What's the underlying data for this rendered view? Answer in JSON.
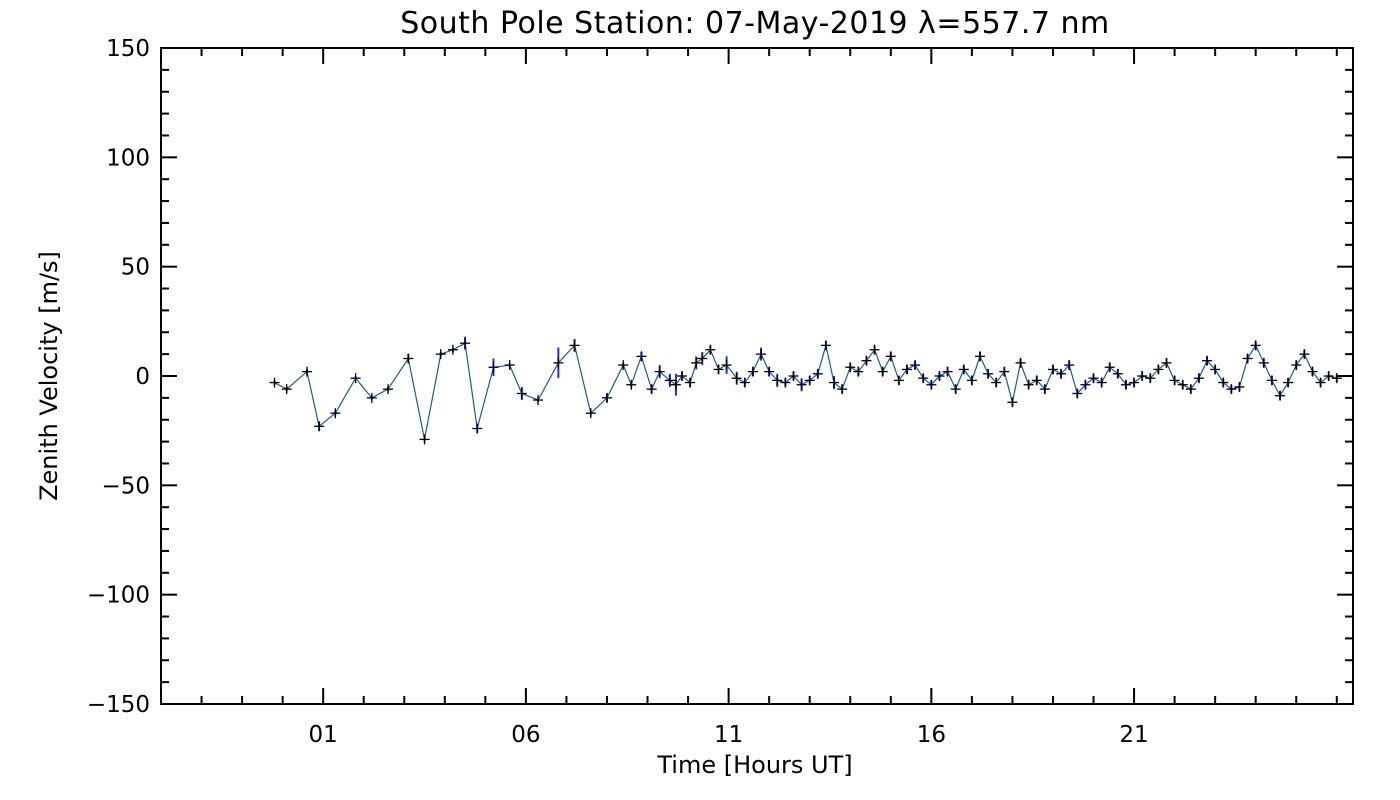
{
  "chart_data": {
    "type": "line",
    "title": "South Pole Station: 07-May-2019 λ=557.7 nm",
    "xlabel": "Time [Hours UT]",
    "ylabel": "Zenith Velocity [m/s]",
    "xlim": [
      -3,
      26.4
    ],
    "ylim": [
      -150,
      150
    ],
    "x_tick_values": [
      1,
      6,
      11,
      16,
      21
    ],
    "x_tick_labels": [
      "01",
      "06",
      "11",
      "16",
      "21"
    ],
    "y_tick_values": [
      -150,
      -100,
      -50,
      0,
      50,
      100,
      150
    ],
    "y_tick_labels": [
      "−150",
      "−100",
      "−50",
      "0",
      "50",
      "100",
      "150"
    ],
    "grid": false,
    "legend": "none",
    "colors": {
      "line": "#1f5f7a",
      "error_bar": "#2a2ae0",
      "marker": "#000000"
    },
    "series": [
      {
        "x": [
          -0.2,
          0.1,
          0.6,
          0.9,
          1.3,
          1.8,
          2.2,
          2.6,
          3.1,
          3.5,
          3.9,
          4.2,
          4.5,
          4.8,
          5.2,
          5.6,
          5.9,
          6.3,
          6.8,
          7.2,
          7.6,
          8.0,
          8.4,
          8.6,
          8.85,
          9.1,
          9.3,
          9.55,
          9.7,
          9.85,
          10.05,
          10.2,
          10.35,
          10.55,
          10.75,
          10.95,
          11.2,
          11.4,
          11.6,
          11.8,
          12.0,
          12.2,
          12.4,
          12.6,
          12.8,
          13.0,
          13.2,
          13.4,
          13.6,
          13.8,
          14.0,
          14.2,
          14.4,
          14.6,
          14.8,
          15.0,
          15.2,
          15.4,
          15.6,
          15.8,
          16.0,
          16.2,
          16.4,
          16.6,
          16.8,
          17.0,
          17.2,
          17.4,
          17.6,
          17.8,
          18.0,
          18.2,
          18.4,
          18.6,
          18.8,
          19.0,
          19.2,
          19.4,
          19.6,
          19.8,
          20.0,
          20.2,
          20.4,
          20.6,
          20.8,
          21.0,
          21.2,
          21.4,
          21.6,
          21.8,
          22.0,
          22.2,
          22.4,
          22.6,
          22.8,
          23.0,
          23.2,
          23.4,
          23.6,
          23.8,
          24.0,
          24.2,
          24.4,
          24.6,
          24.8,
          25.0,
          25.2,
          25.4,
          25.6,
          25.8,
          26.0
        ],
        "y": [
          -3,
          -6,
          2,
          -23,
          -17,
          -1,
          -10,
          -6,
          8,
          -29,
          10,
          12,
          15,
          -24,
          4,
          5,
          -8,
          -11,
          6,
          14,
          -17,
          -10,
          5,
          -4,
          9,
          -6,
          2,
          -2,
          -4,
          0,
          -3,
          6,
          8,
          12,
          3,
          5,
          -1,
          -3,
          2,
          10,
          2,
          -2,
          -3,
          0,
          -4,
          -2,
          1,
          14,
          -3,
          -6,
          4,
          2,
          7,
          12,
          2,
          9,
          -2,
          3,
          5,
          -1,
          -4,
          0,
          2,
          -6,
          3,
          -2,
          9,
          1,
          -3,
          2,
          -12,
          6,
          -4,
          -2,
          -6,
          3,
          1,
          5,
          -8,
          -4,
          -1,
          -3,
          4,
          1,
          -4,
          -3,
          0,
          -1,
          3,
          6,
          -2,
          -4,
          -6,
          -1,
          7,
          3,
          -3,
          -6,
          -5,
          8,
          14,
          6,
          -2,
          -9,
          -3,
          5,
          10,
          2,
          -3,
          0,
          -1
        ],
        "yerr": [
          1,
          1,
          1,
          2,
          1,
          1,
          1,
          1,
          2,
          1,
          1,
          1,
          3,
          2,
          4,
          1,
          3,
          1,
          7,
          3,
          1,
          2,
          1,
          1,
          2,
          2,
          3,
          3,
          5,
          2,
          2,
          3,
          3,
          2,
          2,
          4,
          3,
          2,
          2,
          3,
          2,
          3,
          2,
          2,
          3,
          2,
          2,
          2,
          3,
          2,
          2,
          2,
          2,
          2,
          2,
          2,
          2,
          2,
          2,
          2,
          2,
          2,
          2,
          2,
          2,
          2,
          2,
          2,
          2,
          2,
          2,
          2,
          2,
          2,
          2,
          2,
          2,
          2,
          2,
          2,
          2,
          2,
          2,
          2,
          2,
          2,
          2,
          2,
          2,
          2,
          2,
          2,
          2,
          2,
          2,
          2,
          2,
          2,
          2,
          2,
          2,
          2,
          2,
          2,
          2,
          2,
          2,
          2,
          2,
          2,
          2
        ]
      }
    ]
  }
}
